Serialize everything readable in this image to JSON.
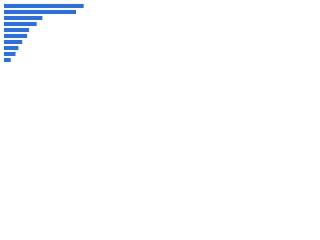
{
  "chart_data": {
    "type": "hbar",
    "categories": [
      null,
      null,
      null,
      null,
      null,
      null,
      null,
      null,
      null,
      null
    ],
    "values": [
      83,
      75,
      40,
      34,
      26,
      24,
      19,
      15,
      12,
      7
    ],
    "color": "#2f6fd6",
    "xlim": [
      0,
      100
    ]
  }
}
